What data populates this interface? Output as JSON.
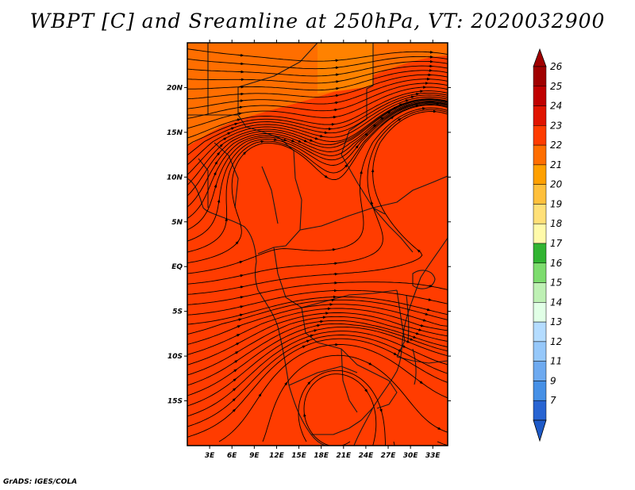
{
  "title": "WBPT [C] and Sreamline at 250hPa, VT: 2020032900",
  "footer": "GrADS: IGES/COLA",
  "colors": {
    "field_main": "#ff3c00",
    "field_north": "#ff6e00",
    "field_patch": "#ff8200",
    "streamline": "#000000",
    "coastline": "#1a1a1a"
  },
  "map": {
    "lon_range": [
      0,
      35
    ],
    "lat_range": [
      -20,
      25
    ],
    "x_ticks": [
      {
        "value": 3,
        "label": "3E"
      },
      {
        "value": 6,
        "label": "6E"
      },
      {
        "value": 9,
        "label": "9E"
      },
      {
        "value": 12,
        "label": "12E"
      },
      {
        "value": 15,
        "label": "15E"
      },
      {
        "value": 18,
        "label": "18E"
      },
      {
        "value": 21,
        "label": "21E"
      },
      {
        "value": 24,
        "label": "24E"
      },
      {
        "value": 27,
        "label": "27E"
      },
      {
        "value": 30,
        "label": "30E"
      },
      {
        "value": 33,
        "label": "33E"
      }
    ],
    "y_ticks": [
      {
        "value": 20,
        "label": "20N"
      },
      {
        "value": 15,
        "label": "15N"
      },
      {
        "value": 10,
        "label": "10N"
      },
      {
        "value": 5,
        "label": "5N"
      },
      {
        "value": 0,
        "label": "EQ"
      },
      {
        "value": -5,
        "label": "5S"
      },
      {
        "value": -10,
        "label": "10S"
      },
      {
        "value": -15,
        "label": "15S"
      }
    ]
  },
  "colorbar": {
    "levels": [
      {
        "label": "26",
        "color": "#a00000"
      },
      {
        "label": "25",
        "color": "#c00000"
      },
      {
        "label": "24",
        "color": "#e01400"
      },
      {
        "label": "23",
        "color": "#ff3c00"
      },
      {
        "label": "22",
        "color": "#ff6e00"
      },
      {
        "label": "21",
        "color": "#ffa000"
      },
      {
        "label": "20",
        "color": "#ffc03c"
      },
      {
        "label": "19",
        "color": "#ffe078"
      },
      {
        "label": "18",
        "color": "#fffaaa"
      },
      {
        "label": "17",
        "color": "#32b432"
      },
      {
        "label": "16",
        "color": "#7ddc6e"
      },
      {
        "label": "15",
        "color": "#bef0b4"
      },
      {
        "label": "14",
        "color": "#e1ffe6"
      },
      {
        "label": "13",
        "color": "#b4dcff"
      },
      {
        "label": "12",
        "color": "#96c8fa"
      },
      {
        "label": "11",
        "color": "#6eaaf0"
      },
      {
        "label": "9",
        "color": "#4690e6"
      },
      {
        "label": "7",
        "color": "#2864d2"
      }
    ],
    "top_arrow_color": "#a00000",
    "bottom_arrow_color": "#1e5ac8"
  }
}
